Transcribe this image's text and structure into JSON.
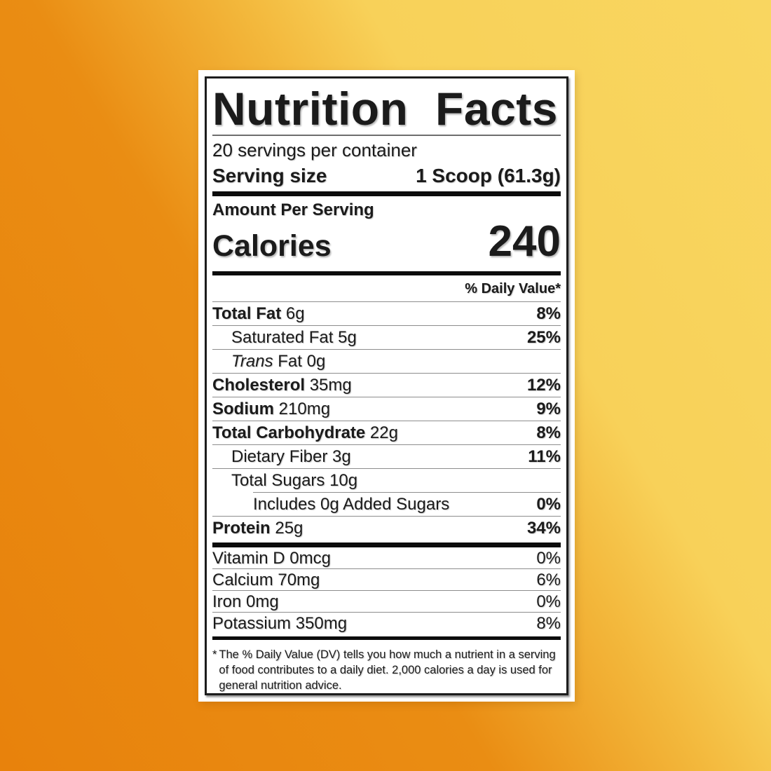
{
  "background": {
    "gradient": {
      "angle": "59deg",
      "stops": [
        [
          "#e8820c",
          "0%"
        ],
        [
          "#ea8d13",
          "40%"
        ],
        [
          "#f3b83c",
          "57%"
        ],
        [
          "#f8d159",
          "67%"
        ],
        [
          "#f9d660",
          "100%"
        ]
      ]
    }
  },
  "label": {
    "title": "Nutrition Facts",
    "servings_per_container": "20 servings per container",
    "serving_size": {
      "label": "Serving size",
      "value": "1 Scoop (61.3g)"
    },
    "amount_per_serving": "Amount Per Serving",
    "calories": {
      "label": "Calories",
      "value": "240"
    },
    "daily_value_header": "% Daily Value*",
    "nutrient_rows": [
      {
        "name": "Total Fat",
        "bold": true,
        "amount": "6g",
        "dv": "8%",
        "indent": 0
      },
      {
        "name": "Saturated Fat",
        "bold": false,
        "amount": "5g",
        "dv": "25%",
        "indent": 1
      },
      {
        "italic": "Trans",
        "name": "Fat",
        "bold": false,
        "amount": "0g",
        "dv": "",
        "indent": 1
      },
      {
        "name": "Cholesterol",
        "bold": true,
        "amount": "35mg",
        "dv": "12%",
        "indent": 0
      },
      {
        "name": "Sodium",
        "bold": true,
        "amount": "210mg",
        "dv": "9%",
        "indent": 0
      },
      {
        "name": "Total Carbohydrate",
        "bold": true,
        "amount": "22g",
        "dv": "8%",
        "indent": 0
      },
      {
        "name": "Dietary Fiber",
        "bold": false,
        "amount": "3g",
        "dv": "11%",
        "indent": 1
      },
      {
        "name": "Total Sugars",
        "bold": false,
        "amount": "10g",
        "dv": "",
        "indent": 1
      },
      {
        "name": "Includes 0g Added Sugars",
        "bold": false,
        "amount": "",
        "dv": "0%",
        "indent": 2,
        "sep_indent": true
      },
      {
        "name": "Protein",
        "bold": true,
        "amount": "25g",
        "dv": "34%",
        "indent": 0
      }
    ],
    "vitamin_rows": [
      {
        "name": "Vitamin D",
        "amount": "0mcg",
        "dv": "0%"
      },
      {
        "name": "Calcium",
        "amount": "70mg",
        "dv": "6%"
      },
      {
        "name": "Iron",
        "amount": "0mg",
        "dv": "0%"
      },
      {
        "name": "Potassium",
        "amount": "350mg",
        "dv": "8%"
      }
    ],
    "footnote_marker": "*",
    "footnote": "The % Daily Value (DV) tells you how much a nutrient in a serving of food contributes to a daily diet. 2,000 calories a day is used for general nutrition advice."
  }
}
